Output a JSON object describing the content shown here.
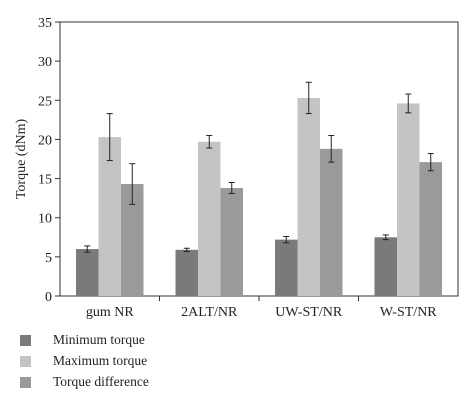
{
  "chart_data": {
    "type": "bar",
    "ylabel": "Torque (dNm)",
    "ylim": [
      0,
      35
    ],
    "yticks": [
      0,
      5,
      10,
      15,
      20,
      25,
      30,
      35
    ],
    "categories": [
      "gum NR",
      "2ALT/NR",
      "UW-ST/NR",
      "W-ST/NR"
    ],
    "series": [
      {
        "name": "Minimum torque",
        "color": "#7a7a7a",
        "values": [
          6.0,
          5.9,
          7.2,
          7.5
        ],
        "errors": [
          0.4,
          0.2,
          0.4,
          0.3
        ]
      },
      {
        "name": "Maximum torque",
        "color": "#c4c4c4",
        "values": [
          20.3,
          19.7,
          25.3,
          24.6
        ],
        "errors": [
          3.0,
          0.8,
          2.0,
          1.2
        ]
      },
      {
        "name": "Torque difference",
        "color": "#9a9a9a",
        "values": [
          14.3,
          13.8,
          18.8,
          17.1
        ],
        "errors": [
          2.6,
          0.7,
          1.7,
          1.1
        ]
      }
    ],
    "legend_position": "bottom-left",
    "grid": false
  }
}
